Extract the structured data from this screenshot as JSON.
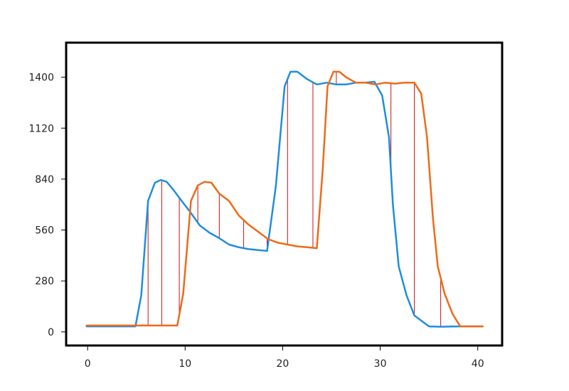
{
  "chart_data": {
    "type": "line",
    "title": "",
    "xlabel": "",
    "ylabel": "",
    "xlim": [
      -2.2,
      42.5
    ],
    "ylim": [
      -75,
      1590
    ],
    "x_ticks": [
      0,
      10,
      20,
      30,
      40
    ],
    "y_ticks": [
      0,
      280,
      560,
      840,
      1120,
      1400
    ],
    "grid": false,
    "legend": "none",
    "colors": {
      "series_blue": "#1f8de0",
      "series_orange": "#ee6a1a",
      "connector": "#cc1111",
      "frame": "#000000"
    },
    "series": [
      {
        "x": [
          -0.1,
          2,
          4.9,
          5.5,
          6.2,
          6.9,
          7.5,
          8.1,
          8.8,
          9.5,
          10.5,
          11.5,
          12.5,
          13.5,
          14.5,
          15.5,
          16.5,
          17.5,
          18.4,
          19.3,
          20.2,
          20.8,
          21.5,
          22.5,
          23.5,
          24.5,
          25.5,
          26.5,
          27.5,
          28.5,
          29.4,
          30.2,
          30.9,
          31.3,
          31.9,
          32.7,
          33.5,
          35,
          36.2,
          38,
          40.5
        ],
        "y": [
          30,
          30,
          30,
          200,
          720,
          820,
          835,
          825,
          780,
          730,
          660,
          585,
          545,
          515,
          480,
          465,
          455,
          450,
          445,
          800,
          1350,
          1430,
          1430,
          1390,
          1360,
          1370,
          1360,
          1360,
          1370,
          1370,
          1375,
          1300,
          1070,
          700,
          360,
          200,
          90,
          30,
          28,
          30,
          30
        ]
      },
      {
        "x": [
          -0.1,
          2,
          4.5,
          5.5,
          7,
          9.2,
          9.8,
          10.6,
          11.3,
          12,
          12.7,
          13.5,
          14.5,
          15.5,
          16.5,
          17.5,
          18.5,
          19.5,
          20.5,
          21.5,
          22.5,
          23.5,
          24.1,
          24.6,
          25.2,
          25.8,
          26.5,
          27.5,
          28.5,
          29.5,
          30.5,
          31.5,
          32.5,
          33.5,
          34.2,
          34.8,
          35.4,
          35.9,
          36.6,
          37.4,
          38.2,
          40.5
        ],
        "y": [
          35,
          35,
          35,
          35,
          35,
          35,
          210,
          720,
          805,
          825,
          820,
          760,
          720,
          640,
          590,
          550,
          510,
          490,
          480,
          470,
          465,
          460,
          890,
          1350,
          1430,
          1430,
          1400,
          1370,
          1370,
          1360,
          1370,
          1365,
          1370,
          1370,
          1310,
          1070,
          630,
          360,
          210,
          100,
          30,
          30
        ]
      }
    ],
    "connector_x": [
      5.0,
      6.2,
      7.6,
      9.4,
      11.3,
      13.5,
      16.0,
      18.4,
      20.5,
      23.1,
      25.5,
      31.1,
      33.5,
      36.2
    ]
  }
}
